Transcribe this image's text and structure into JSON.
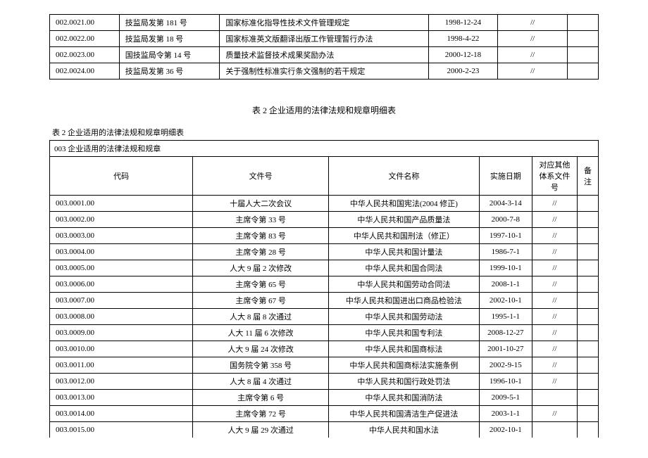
{
  "table1": {
    "rows": [
      [
        "002.0021.00",
        "技监局发第 181 号",
        "国家标准化指导性技术文件管理规定",
        "1998-12-24",
        "//",
        ""
      ],
      [
        "002.0022.00",
        "技监局发第 18 号",
        "国家标准英文版翻译出版工作管理暂行办法",
        "1998-4-22",
        "//",
        ""
      ],
      [
        "002.0023.00",
        "国技监局令第 14 号",
        "质量技术监督技术成果奖励办法",
        "2000-12-18",
        "//",
        ""
      ],
      [
        "002.0024.00",
        "技监局发第 36 号",
        "关于强制性标准实行条文强制的若干规定",
        "2000-2-23",
        "//",
        ""
      ]
    ]
  },
  "mid_title": "表 2   企业适用的法律法规和规章明细表",
  "sub_title": "表 2   企业适用的法律法规和规章明细表",
  "table2": {
    "section_header": "003 企业适用的法律法规和规章",
    "columns": [
      "代码",
      "文件号",
      "文件名称",
      "实施日期",
      "对应其他体系文件号",
      "备注"
    ],
    "rows": [
      [
        "003.0001.00",
        "十届人大二次会议",
        "中华人民共和国宪法(2004 修正)",
        "2004-3-14",
        "//",
        ""
      ],
      [
        "003.0002.00",
        "主席令第 33 号",
        "中华人民共和国产品质量法",
        "2000-7-8",
        "//",
        ""
      ],
      [
        "003.0003.00",
        "主席令第 83 号",
        "中华人民共和国刑法（修正）",
        "1997-10-1",
        "//",
        ""
      ],
      [
        "003.0004.00",
        "主席令第 28 号",
        "中华人民共和国计量法",
        "1986-7-1",
        "//",
        ""
      ],
      [
        "003.0005.00",
        "人大 9 届 2 次修改",
        "中华人民共和国合同法",
        "1999-10-1",
        "//",
        ""
      ],
      [
        "003.0006.00",
        "主席令第 65 号",
        "中华人民共和国劳动合同法",
        "2008-1-1",
        "//",
        ""
      ],
      [
        "003.0007.00",
        "主席令第 67 号",
        "中华人民共和国进出口商品检验法",
        "2002-10-1",
        "//",
        ""
      ],
      [
        "003.0008.00",
        "人大 8 届 8 次通过",
        "中华人民共和国劳动法",
        "1995-1-1",
        "//",
        ""
      ],
      [
        "003.0009.00",
        "人大 11 届 6 次修改",
        "中华人民共和国专利法",
        "2008-12-27",
        "//",
        ""
      ],
      [
        "003.0010.00",
        "人大 9 届 24 次修改",
        "中华人民共和国商标法",
        "2001-10-27",
        "//",
        ""
      ],
      [
        "003.0011.00",
        "国务院令第 358 号",
        "中华人民共和国商标法实施条例",
        "2002-9-15",
        "//",
        ""
      ],
      [
        "003.0012.00",
        "人大 8 届 4 次通过",
        "中华人民共和国行政处罚法",
        "1996-10-1",
        "//",
        ""
      ],
      [
        "003.0013.00",
        "主席令第 6 号",
        "中华人民共和国消防法",
        "2009-5-1",
        "",
        ""
      ],
      [
        "003.0014.00",
        "主席令第 72 号",
        "中华人民共和国清洁生产促进法",
        "2003-1-1",
        "//",
        ""
      ],
      [
        "003.0015.00",
        "人大 9 届 29 次通过",
        "中华人民共和国水法",
        "2002-10-1",
        "",
        ""
      ]
    ]
  }
}
